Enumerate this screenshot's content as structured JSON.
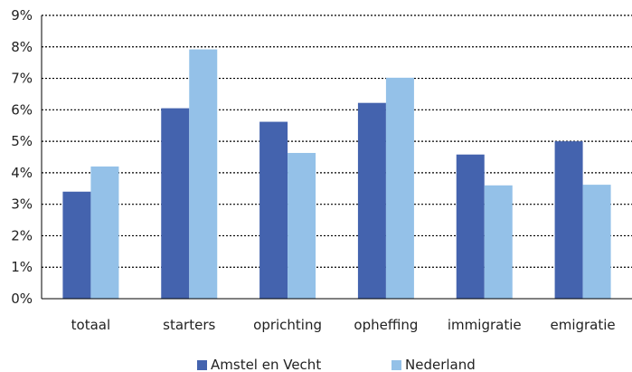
{
  "chart_data": {
    "type": "bar",
    "title": "",
    "xlabel": "",
    "ylabel": "",
    "categories": [
      "totaal",
      "starters",
      "oprichting",
      "opheffing",
      "immigratie",
      "emigratie"
    ],
    "series": [
      {
        "name": "Amstel en Vecht",
        "color": "#4463ae",
        "values": [
          3.4,
          6.05,
          5.62,
          6.22,
          4.58,
          5.0
        ]
      },
      {
        "name": "Nederland",
        "color": "#94c1e8",
        "values": [
          4.2,
          7.92,
          4.63,
          7.02,
          3.6,
          3.62
        ]
      }
    ],
    "ylim": [
      0,
      9
    ],
    "yticks": [
      "0%",
      "1%",
      "2%",
      "3%",
      "4%",
      "5%",
      "6%",
      "7%",
      "8%",
      "9%"
    ],
    "grid": "dotted horizontal",
    "legend": "bottom"
  }
}
